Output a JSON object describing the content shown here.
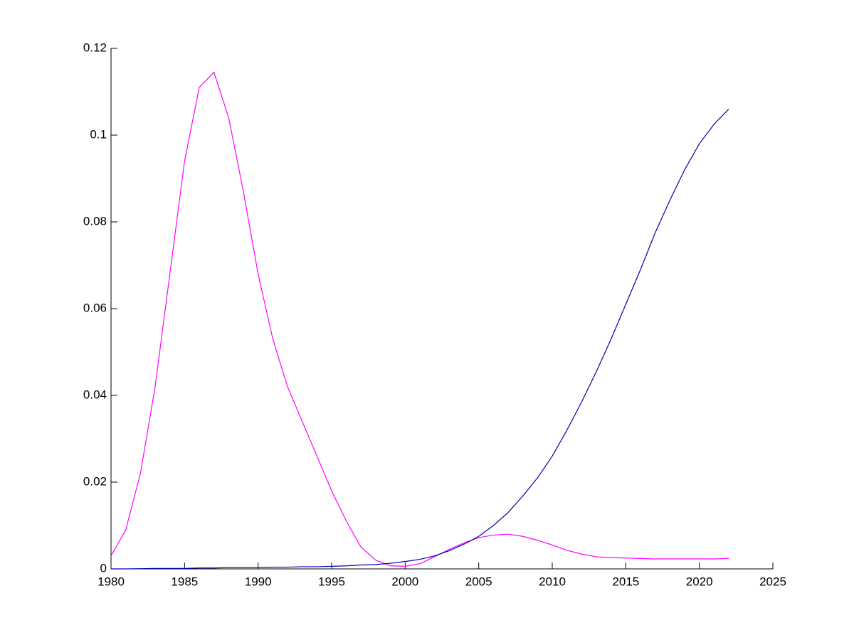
{
  "chart_data": {
    "type": "line",
    "x": [
      1980,
      1981,
      1982,
      1983,
      1984,
      1985,
      1986,
      1987,
      1988,
      1989,
      1990,
      1991,
      1992,
      1993,
      1994,
      1995,
      1996,
      1997,
      1998,
      1999,
      2000,
      2001,
      2002,
      2003,
      2004,
      2005,
      2006,
      2007,
      2008,
      2009,
      2010,
      2011,
      2012,
      2013,
      2014,
      2015,
      2016,
      2017,
      2018,
      2019,
      2020,
      2021,
      2022
    ],
    "series": [
      {
        "color": "#ff00ff",
        "values": [
          0.003,
          0.009,
          0.022,
          0.042,
          0.068,
          0.094,
          0.111,
          0.1145,
          0.104,
          0.087,
          0.068,
          0.053,
          0.042,
          0.034,
          0.026,
          0.018,
          0.011,
          0.005,
          0.002,
          0.0007,
          0.0006,
          0.0012,
          0.0028,
          0.0045,
          0.006,
          0.0072,
          0.0078,
          0.008,
          0.0075,
          0.0066,
          0.0055,
          0.0043,
          0.0034,
          0.0028,
          0.0026,
          0.0025,
          0.0024,
          0.0023,
          0.0023,
          0.0023,
          0.0023,
          0.0023,
          0.0024
        ]
      },
      {
        "color": "#0000aa",
        "values": [
          0,
          0,
          5e-05,
          0.0001,
          0.0001,
          0.0001,
          0.0002,
          0.0002,
          0.0003,
          0.0003,
          0.0003,
          0.0004,
          0.0004,
          0.0005,
          0.0005,
          0.0006,
          0.0007,
          0.0009,
          0.001,
          0.0013,
          0.0017,
          0.0022,
          0.003,
          0.0042,
          0.0057,
          0.0075,
          0.01,
          0.013,
          0.0168,
          0.021,
          0.026,
          0.032,
          0.0385,
          0.0455,
          0.053,
          0.061,
          0.069,
          0.0775,
          0.085,
          0.092,
          0.098,
          0.1025,
          0.106
        ]
      }
    ],
    "xlim": [
      1980,
      2025
    ],
    "xticks": [
      1980,
      1985,
      1990,
      1995,
      2000,
      2005,
      2010,
      2015,
      2020,
      2025
    ],
    "ylim": [
      0,
      0.12
    ],
    "yticks": [
      0,
      0.02,
      0.04,
      0.06,
      0.08,
      0.1,
      0.12
    ],
    "grid": false
  }
}
